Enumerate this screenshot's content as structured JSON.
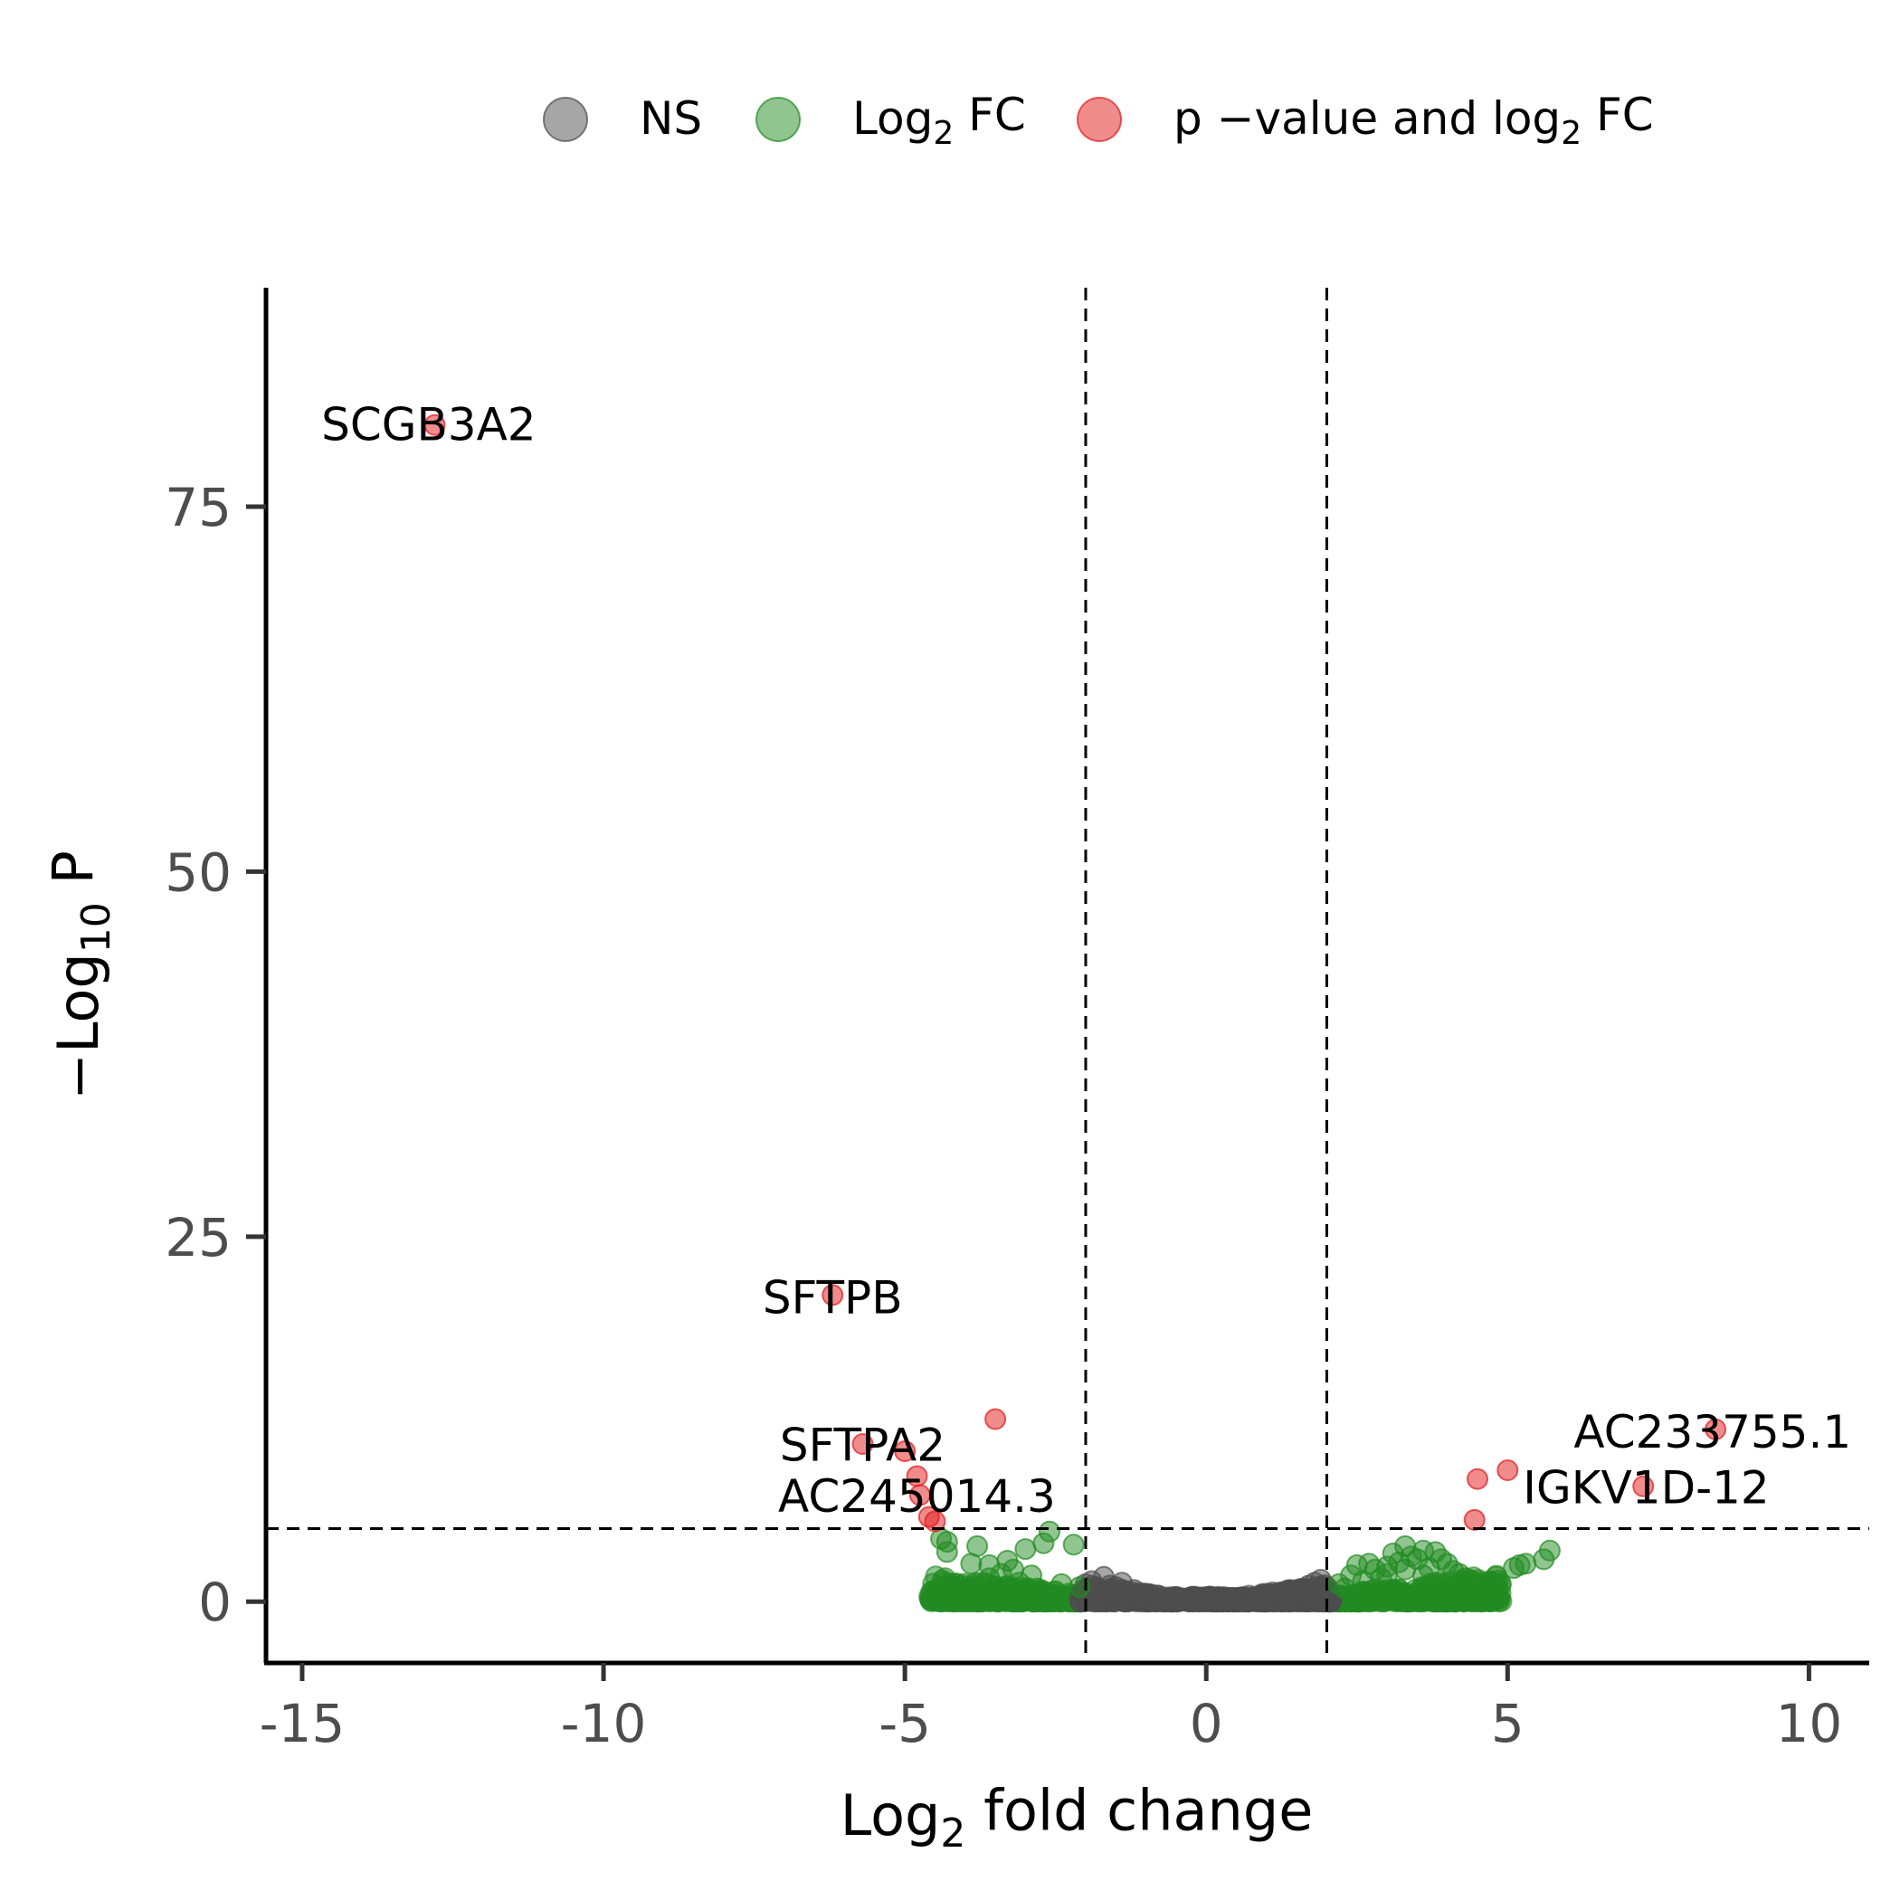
{
  "chart_data": {
    "type": "scatter",
    "title": "",
    "xlabel": {
      "pre": "Log",
      "sub": "2",
      "post": " fold change"
    },
    "ylabel": {
      "pre": "−Log",
      "sub": "10",
      "post": " P"
    },
    "xlim": [
      -15.6,
      11
    ],
    "ylim": [
      -4.2,
      90
    ],
    "x_ticks": [
      -15,
      -10,
      -5,
      0,
      5,
      10
    ],
    "x_tick_labels": [
      "-15",
      "-10",
      "-5",
      "0",
      "5",
      "10"
    ],
    "y_ticks": [
      0,
      25,
      50,
      75
    ],
    "y_tick_labels": [
      "0",
      "25",
      "50",
      "75"
    ],
    "cutoffs": {
      "log2fc": [
        -2,
        2
      ],
      "neg_log10_p": 5
    },
    "grid": false,
    "legend_position": "top",
    "legend": [
      {
        "key": "NS",
        "label": {
          "pre": "NS",
          "sub": "",
          "post": ""
        },
        "color": "#4d4d4d"
      },
      {
        "key": "FC",
        "label": {
          "pre": "Log",
          "sub": "2",
          "post": " FC"
        },
        "color": "#228b22"
      },
      {
        "key": "P_FC",
        "label": {
          "pre": "p −value and log",
          "sub": "2",
          "post": " FC"
        },
        "color": "#e31a1c"
      }
    ],
    "colors": {
      "NS": "#4d4d4d",
      "FC": "#228b22",
      "P_FC": "#e31a1c"
    },
    "series": [
      {
        "key": "P_FC",
        "points": [
          [
            -12.8,
            80.6
          ],
          [
            -6.2,
            21.0
          ],
          [
            -5.7,
            10.8
          ],
          [
            -5.0,
            10.3
          ],
          [
            -4.8,
            8.6
          ],
          [
            -4.75,
            7.3
          ],
          [
            -4.6,
            5.8
          ],
          [
            -4.5,
            5.5
          ],
          [
            -3.5,
            12.5
          ],
          [
            4.45,
            5.6
          ],
          [
            4.5,
            8.4
          ],
          [
            5.0,
            9.0
          ],
          [
            7.25,
            7.9
          ],
          [
            8.45,
            11.8
          ]
        ]
      },
      {
        "key": "FC",
        "points": [
          [
            -4.4,
            4.3
          ],
          [
            -4.3,
            4.1
          ],
          [
            -4.3,
            3.4
          ],
          [
            -3.8,
            3.8
          ],
          [
            -3.9,
            2.6
          ],
          [
            -3.6,
            2.5
          ],
          [
            -3.3,
            2.8
          ],
          [
            -3.2,
            2.2
          ],
          [
            -3.0,
            3.6
          ],
          [
            -2.9,
            1.8
          ],
          [
            -2.7,
            4.0
          ],
          [
            -2.6,
            4.8
          ],
          [
            -2.4,
            1.2
          ],
          [
            -2.2,
            3.9
          ],
          [
            -2.1,
            1.0
          ],
          [
            -3.6,
            1.6
          ],
          [
            -3.1,
            1.3
          ],
          [
            -2.8,
            0.9
          ],
          [
            -2.5,
            0.7
          ],
          [
            -3.4,
            1.9
          ],
          [
            2.2,
            1.2
          ],
          [
            2.4,
            1.8
          ],
          [
            2.6,
            1.4
          ],
          [
            2.8,
            2.2
          ],
          [
            2.9,
            1.6
          ],
          [
            3.0,
            2.4
          ],
          [
            3.1,
            3.3
          ],
          [
            3.2,
            2.7
          ],
          [
            3.3,
            3.8
          ],
          [
            3.4,
            3.1
          ],
          [
            3.5,
            2.9
          ],
          [
            3.6,
            3.5
          ],
          [
            3.7,
            2.3
          ],
          [
            3.8,
            3.4
          ],
          [
            3.9,
            2.9
          ],
          [
            4.0,
            2.6
          ],
          [
            4.2,
            1.9
          ],
          [
            4.3,
            1.6
          ],
          [
            4.5,
            1.3
          ],
          [
            4.6,
            1.1
          ],
          [
            4.7,
            1.4
          ],
          [
            5.1,
            2.3
          ],
          [
            5.2,
            2.5
          ],
          [
            5.3,
            2.6
          ],
          [
            5.6,
            2.9
          ],
          [
            5.7,
            3.5
          ],
          [
            2.5,
            2.5
          ],
          [
            2.7,
            2.6
          ],
          [
            3.0,
            1.9
          ],
          [
            3.3,
            2.2
          ],
          [
            3.6,
            1.8
          ],
          [
            4.1,
            2.1
          ],
          [
            2.3,
            0.9
          ],
          [
            4.4,
            0.8
          ]
        ]
      },
      {
        "key": "NS",
        "points": [
          [
            -2.0,
            1.2
          ],
          [
            -1.9,
            1.4
          ],
          [
            -1.8,
            0.9
          ],
          [
            -1.7,
            1.7
          ],
          [
            -1.6,
            0.7
          ],
          [
            -1.6,
            1.1
          ],
          [
            -1.5,
            1.0
          ],
          [
            -1.4,
            1.3
          ],
          [
            -1.3,
            0.6
          ],
          [
            -1.2,
            0.8
          ],
          [
            -1.0,
            0.5
          ],
          [
            -0.8,
            0.4
          ],
          [
            -0.6,
            0.3
          ],
          [
            1.2,
            0.6
          ],
          [
            1.4,
            0.8
          ],
          [
            1.6,
            0.9
          ],
          [
            1.7,
            1.1
          ],
          [
            1.8,
            1.3
          ],
          [
            1.9,
            1.5
          ],
          [
            2.0,
            1.0
          ],
          [
            1.5,
            0.5
          ],
          [
            1.0,
            0.4
          ],
          [
            -1.1,
            0.2
          ],
          [
            0.8,
            0.3
          ]
        ]
      }
    ],
    "bands": [
      {
        "key": "FC",
        "ranges": [
          [
            -4.6,
            -2.0
          ],
          [
            2.0,
            4.9
          ]
        ]
      },
      {
        "key": "NS",
        "ranges": [
          [
            -2.1,
            2.1
          ]
        ]
      }
    ],
    "annotations": [
      {
        "text": "SCGB3A2",
        "x": -12.9,
        "y": 80.6
      },
      {
        "text": "SFTPB",
        "x": -6.2,
        "y": 20.8
      },
      {
        "text": "SFTPA2",
        "x": -5.7,
        "y": 10.7
      },
      {
        "text": "AC245014.3",
        "x": -4.8,
        "y": 7.2
      },
      {
        "text": "AC233755.1",
        "x": 8.4,
        "y": 11.6
      },
      {
        "text": "IGKV1D-12",
        "x": 7.3,
        "y": 7.8
      }
    ]
  }
}
